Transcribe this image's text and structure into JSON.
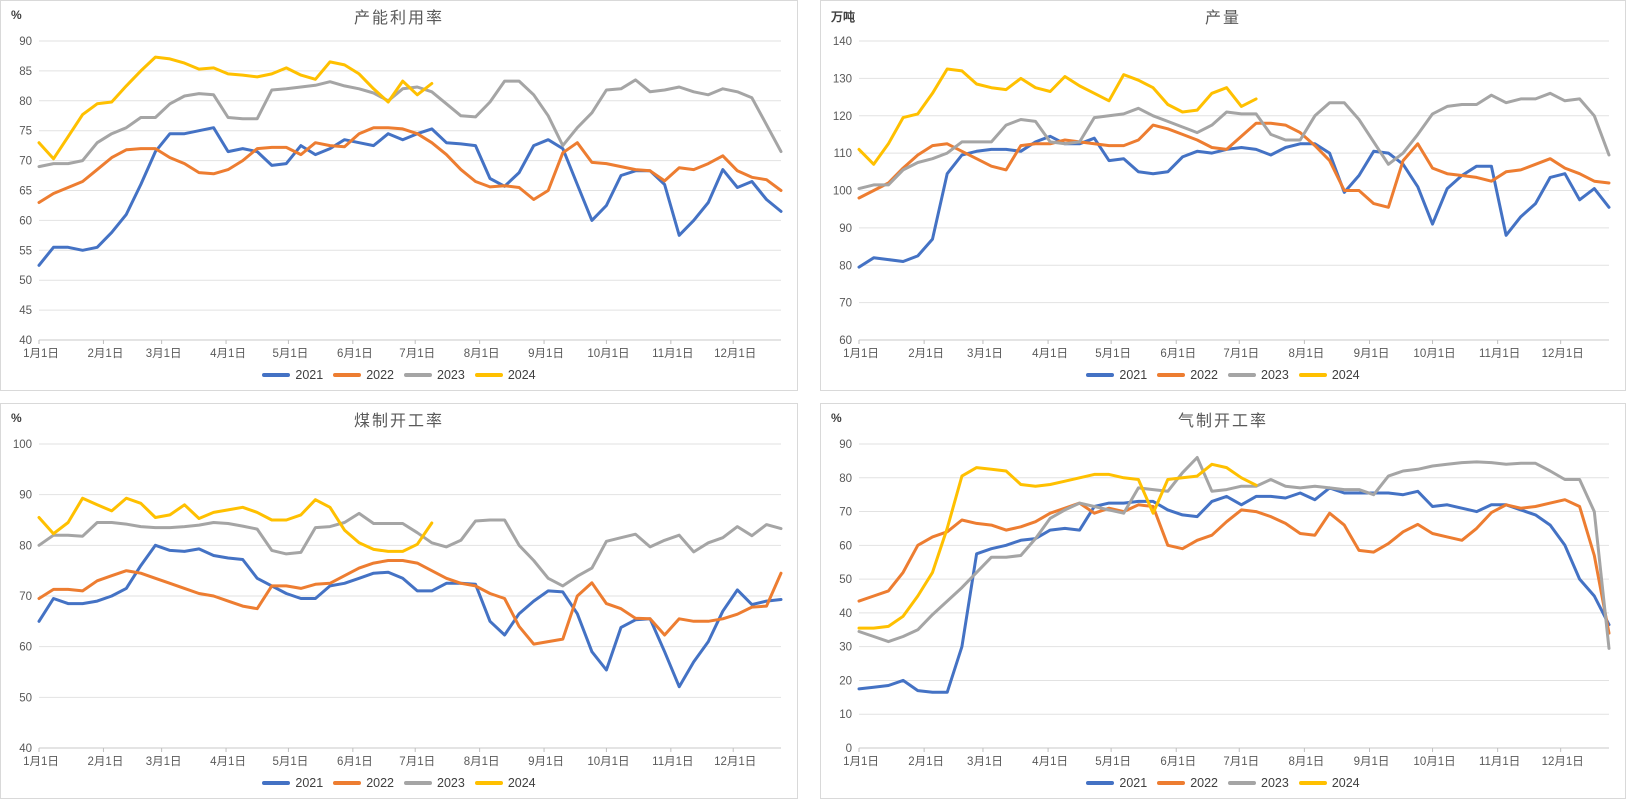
{
  "page": {
    "background": "#ffffff"
  },
  "legend_years": [
    "2021",
    "2022",
    "2023",
    "2024"
  ],
  "palette": {
    "blue": "#4472C4",
    "orange": "#ED7D31",
    "gray": "#A5A5A5",
    "yellow": "#FFC000"
  },
  "chart_data": [
    {
      "slug": "capacity-utilization",
      "type": "line",
      "title": "产能利用率",
      "unit_label": "%",
      "ylim": [
        40,
        90
      ],
      "y_step": 5,
      "grid": true,
      "legend_position": "bottom",
      "x_tick_labels": [
        "1月1日",
        "2月1日",
        "3月1日",
        "4月1日",
        "5月1日",
        "6月1日",
        "7月1日",
        "8月1日",
        "9月1日",
        "10月1日",
        "11月1日",
        "12月1日"
      ],
      "series": [
        {
          "name": "2021",
          "color": "#4472C4",
          "values": [
            52.5,
            55.5,
            55.5,
            55,
            55.5,
            58,
            61,
            66,
            71.5,
            74.5,
            74.5,
            75,
            75.5,
            71.5,
            72,
            71.5,
            69.2,
            69.5,
            72.5,
            71,
            72,
            73.5,
            73,
            72.5,
            74.5,
            73.5,
            74.5,
            75.3,
            73,
            72.8,
            72.5,
            67,
            65.7,
            68,
            72.5,
            73.5,
            72,
            66,
            60,
            62.5,
            67.5,
            68.3,
            68.3,
            66,
            57.5,
            60,
            63,
            68.5,
            65.5,
            66.5,
            63.5,
            61.5
          ]
        },
        {
          "name": "2022",
          "color": "#ED7D31",
          "values": [
            63,
            64.5,
            65.5,
            66.5,
            68.5,
            70.5,
            71.8,
            72,
            72,
            70.5,
            69.5,
            68,
            67.8,
            68.5,
            70,
            72,
            72.2,
            72.2,
            71,
            73,
            72.5,
            72.3,
            74.5,
            75.5,
            75.5,
            75.3,
            74.5,
            73,
            71,
            68.5,
            66.5,
            65.6,
            65.8,
            65.5,
            63.5,
            65,
            71.3,
            73,
            69.7,
            69.5,
            69,
            68.5,
            68.3,
            66.6,
            68.8,
            68.5,
            69.5,
            70.8,
            68.3,
            67.2,
            66.8,
            65
          ]
        },
        {
          "name": "2023",
          "color": "#A5A5A5",
          "values": [
            69,
            69.5,
            69.5,
            70,
            73,
            74.5,
            75.5,
            77.2,
            77.2,
            79.5,
            80.8,
            81.2,
            81,
            77.2,
            77,
            77,
            81.8,
            82,
            82.3,
            82.6,
            83.2,
            82.5,
            82,
            81.3,
            80,
            82,
            82.3,
            81.5,
            79.5,
            77.5,
            77.3,
            79.8,
            83.3,
            83.3,
            81,
            77.5,
            72.5,
            75.5,
            78,
            81.8,
            82,
            83.5,
            81.5,
            81.8,
            82.3,
            81.5,
            81,
            82,
            81.5,
            80.5,
            76,
            71.5
          ]
        },
        {
          "name": "2024",
          "color": "#FFC000",
          "values": [
            73,
            70.3,
            74,
            77.7,
            79.5,
            79.8,
            82.5,
            85,
            87.3,
            87,
            86.3,
            85.3,
            85.5,
            84.5,
            84.3,
            84,
            84.5,
            85.5,
            84.3,
            83.6,
            86.5,
            86,
            84.5,
            82,
            79.8,
            83.3,
            81,
            82.9
          ]
        }
      ]
    },
    {
      "slug": "output",
      "type": "line",
      "title": "产量",
      "unit_label": "万吨",
      "ylim": [
        60,
        140
      ],
      "y_step": 10,
      "grid": true,
      "legend_position": "bottom",
      "x_tick_labels": [
        "1月1日",
        "2月1日",
        "3月1日",
        "4月1日",
        "5月1日",
        "6月1日",
        "7月1日",
        "8月1日",
        "9月1日",
        "10月1日",
        "11月1日",
        "12月1日"
      ],
      "series": [
        {
          "name": "2021",
          "color": "#4472C4",
          "values": [
            79.5,
            82,
            81.5,
            81,
            82.5,
            87,
            104.5,
            109.5,
            110.5,
            111,
            111,
            110.5,
            113,
            114.5,
            112.5,
            112.5,
            114,
            108,
            108.5,
            105,
            104.5,
            105,
            109,
            110.5,
            110,
            111,
            111.5,
            111,
            109.5,
            111.5,
            112.5,
            112.5,
            110,
            99.5,
            104,
            110.5,
            110,
            107,
            101,
            91,
            100.5,
            104,
            106.5,
            106.5,
            88,
            93,
            96.5,
            103.5,
            104.5,
            97.5,
            100.5,
            95.5
          ]
        },
        {
          "name": "2022",
          "color": "#ED7D31",
          "values": [
            98,
            100,
            102,
            106,
            109.5,
            112,
            112.5,
            110.5,
            108.5,
            106.5,
            105.5,
            112,
            112.5,
            112.5,
            113.5,
            113,
            112.5,
            112,
            112,
            113.5,
            117.5,
            116.5,
            115,
            113.5,
            111.5,
            111,
            114.5,
            118,
            118,
            117.5,
            115.5,
            112,
            108,
            100,
            100,
            96.5,
            95.5,
            108,
            112.5,
            106,
            104.5,
            104,
            103.5,
            102.5,
            105,
            105.5,
            107,
            108.5,
            106,
            104.5,
            102.5,
            102
          ]
        },
        {
          "name": "2023",
          "color": "#A5A5A5",
          "values": [
            100.5,
            101.5,
            101.5,
            105.5,
            107.5,
            108.5,
            110,
            113,
            113,
            113,
            117.5,
            119,
            118.5,
            113,
            112.5,
            113,
            119.5,
            120,
            120.5,
            122,
            120,
            118.5,
            117,
            115.5,
            117.5,
            121,
            120.5,
            120.5,
            115,
            113.5,
            113.5,
            120,
            123.5,
            123.5,
            119,
            113,
            107,
            110,
            115,
            120.5,
            122.5,
            123,
            123,
            125.5,
            123.5,
            124.5,
            124.5,
            126,
            124,
            124.5,
            120,
            109.5
          ]
        },
        {
          "name": "2024",
          "color": "#FFC000",
          "values": [
            111,
            107,
            112.5,
            119.5,
            120.5,
            126,
            132.5,
            132,
            128.5,
            127.5,
            127,
            130,
            127.5,
            126.5,
            130.5,
            128,
            126,
            124,
            131,
            129.5,
            127.5,
            123,
            121,
            121.5,
            126,
            127.5,
            122.5,
            124.5
          ]
        }
      ]
    },
    {
      "slug": "coal-based-operating-rate",
      "type": "line",
      "title": "煤制开工率",
      "unit_label": "%",
      "ylim": [
        40,
        100
      ],
      "y_step": 10,
      "grid": true,
      "legend_position": "bottom",
      "x_tick_labels": [
        "1月1日",
        "2月1日",
        "3月1日",
        "4月1日",
        "5月1日",
        "6月1日",
        "7月1日",
        "8月1日",
        "9月1日",
        "10月1日",
        "11月1日",
        "12月1日"
      ],
      "series": [
        {
          "name": "2021",
          "color": "#4472C4",
          "values": [
            65,
            69.5,
            68.5,
            68.5,
            69,
            70,
            71.5,
            76,
            80,
            79,
            78.8,
            79.3,
            78,
            77.5,
            77.2,
            73.5,
            72,
            70.5,
            69.5,
            69.5,
            72,
            72.5,
            73.5,
            74.5,
            74.7,
            73.5,
            71,
            71,
            72.5,
            72.5,
            72.3,
            65,
            62.3,
            66.5,
            69,
            71,
            70.8,
            66.5,
            59,
            55.4,
            63.8,
            65.3,
            65.5,
            59,
            52.1,
            57,
            61,
            67,
            71.2,
            68.3,
            69,
            69.3
          ]
        },
        {
          "name": "2022",
          "color": "#ED7D31",
          "values": [
            69.5,
            71.3,
            71.3,
            71,
            73,
            74,
            75,
            74.5,
            73.5,
            72.5,
            71.5,
            70.5,
            70,
            69,
            68,
            67.5,
            72,
            72,
            71.5,
            72.3,
            72.5,
            74,
            75.5,
            76.5,
            77,
            77,
            76.5,
            75,
            73.5,
            72.5,
            72,
            70.5,
            69.5,
            64,
            60.5,
            61,
            61.5,
            70,
            72.6,
            68.5,
            67.5,
            65.6,
            65.5,
            62.3,
            65.5,
            65,
            65,
            65.5,
            66.4,
            67.8,
            68,
            74.5
          ]
        },
        {
          "name": "2023",
          "color": "#A5A5A5",
          "values": [
            80,
            82,
            82,
            81.8,
            84.5,
            84.5,
            84.2,
            83.7,
            83.5,
            83.5,
            83.7,
            84,
            84.5,
            84.3,
            83.8,
            83.2,
            79,
            78.3,
            78.6,
            83.5,
            83.7,
            84.5,
            86.3,
            84.3,
            84.3,
            84.3,
            82.5,
            80.5,
            79.7,
            81,
            84.8,
            85,
            85,
            80,
            77,
            73.5,
            72,
            73.9,
            75.5,
            80.8,
            81.5,
            82.2,
            79.7,
            81,
            82,
            78.7,
            80.5,
            81.5,
            83.7,
            81.9,
            84.1,
            83.3
          ]
        },
        {
          "name": "2024",
          "color": "#FFC000",
          "values": [
            85.5,
            82.3,
            84.5,
            89.3,
            88,
            86.8,
            89.3,
            88.3,
            85.5,
            86,
            88,
            85.3,
            86.5,
            87,
            87.5,
            86.5,
            85,
            85,
            86,
            89,
            87.5,
            83,
            80.5,
            79.2,
            78.8,
            78.8,
            80.2,
            84.4
          ]
        }
      ]
    },
    {
      "slug": "gas-based-operating-rate",
      "type": "line",
      "title": "气制开工率",
      "unit_label": "%",
      "ylim": [
        0,
        90
      ],
      "y_step": 10,
      "grid": true,
      "legend_position": "bottom",
      "x_tick_labels": [
        "1月1日",
        "2月1日",
        "3月1日",
        "4月1日",
        "5月1日",
        "6月1日",
        "7月1日",
        "8月1日",
        "9月1日",
        "10月1日",
        "11月1日",
        "12月1日"
      ],
      "series": [
        {
          "name": "2021",
          "color": "#4472C4",
          "values": [
            17.5,
            18,
            18.5,
            20,
            17,
            16.5,
            16.5,
            30,
            57.5,
            59,
            60,
            61.5,
            62,
            64.5,
            65,
            64.5,
            71.5,
            72.5,
            72.5,
            73,
            73,
            70.5,
            69,
            68.5,
            73,
            74.5,
            72,
            74.5,
            74.5,
            74,
            75.5,
            73.5,
            77,
            75.5,
            75.5,
            75.5,
            75.5,
            75,
            76,
            71.5,
            72,
            71,
            70,
            72,
            72,
            70.5,
            69,
            66,
            60,
            50,
            45,
            36.5
          ]
        },
        {
          "name": "2022",
          "color": "#ED7D31",
          "values": [
            43.5,
            45,
            46.5,
            52,
            60,
            62.5,
            64,
            67.5,
            66.5,
            66,
            64.5,
            65.5,
            67,
            69.5,
            71,
            72.5,
            69.5,
            71,
            70,
            72,
            71.5,
            60,
            59,
            61.5,
            63,
            67,
            70.5,
            70,
            68.5,
            66.5,
            63.5,
            63,
            69.5,
            66,
            58.5,
            58,
            60.5,
            64,
            66.2,
            63.5,
            62.5,
            61.5,
            65,
            69.7,
            72,
            71,
            71.5,
            72.5,
            73.5,
            71.5,
            57,
            34
          ]
        },
        {
          "name": "2023",
          "color": "#A5A5A5",
          "values": [
            34.5,
            33,
            31.5,
            33,
            35,
            39.5,
            43.5,
            47.5,
            52,
            56.5,
            56.5,
            57,
            62,
            68,
            70.5,
            72.5,
            71.5,
            70.5,
            69.5,
            77,
            76.5,
            76,
            81.5,
            86,
            76,
            76.5,
            77.5,
            77.5,
            79.5,
            77.5,
            77,
            77.5,
            77,
            76.5,
            76.5,
            75,
            80.5,
            82,
            82.5,
            83.5,
            84,
            84.5,
            84.7,
            84.5,
            84,
            84.3,
            84.3,
            82,
            79.5,
            79.5,
            70,
            29.5
          ]
        },
        {
          "name": "2024",
          "color": "#FFC000",
          "values": [
            35.5,
            35.5,
            36,
            39,
            45,
            52,
            65,
            80.5,
            83,
            82.5,
            82,
            78,
            77.5,
            78,
            79,
            80,
            81,
            81,
            80,
            79.5,
            69.5,
            79.5,
            80,
            80.5,
            84,
            83,
            80,
            77.8
          ]
        }
      ]
    }
  ]
}
